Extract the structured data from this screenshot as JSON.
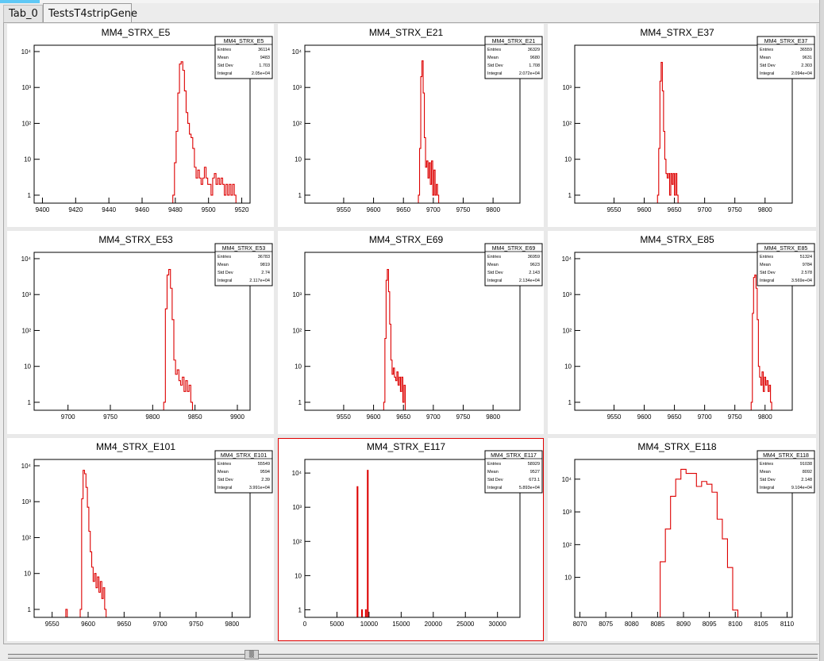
{
  "tabs": [
    {
      "label": "Tab_0"
    },
    {
      "label": "TestsT4stripGene"
    }
  ],
  "scroll_thumb_glyph": "▒",
  "colors": {
    "histogram": "#dd0000",
    "highlight_border": "#e00000",
    "pad_background": "#ffffff"
  },
  "chart_data": [
    {
      "type": "histogram",
      "title": "MM4_STRX_E5",
      "log_y": true,
      "xlim": [
        9395,
        9525
      ],
      "ylim": [
        0.6,
        15000
      ],
      "xticks": [
        9400,
        9420,
        9440,
        9460,
        9480,
        9500,
        9520
      ],
      "yticks": [
        {
          "v": 1,
          "label": "1"
        },
        {
          "v": 10,
          "label": "10"
        },
        {
          "v": 100,
          "label": "10²"
        },
        {
          "v": 1000,
          "label": "10³"
        },
        {
          "v": 10000,
          "label": "10⁴"
        }
      ],
      "bin_width": 1,
      "points": [
        [
          9479,
          1
        ],
        [
          9480,
          8
        ],
        [
          9481,
          60
        ],
        [
          9482,
          700
        ],
        [
          9483,
          4500
        ],
        [
          9484,
          5200
        ],
        [
          9485,
          3000
        ],
        [
          9486,
          800
        ],
        [
          9487,
          200
        ],
        [
          9488,
          100
        ],
        [
          9489,
          50
        ],
        [
          9490,
          40
        ],
        [
          9491,
          20
        ],
        [
          9492,
          6
        ],
        [
          9493,
          3
        ],
        [
          9494,
          5
        ],
        [
          9495,
          3
        ],
        [
          9496,
          2
        ],
        [
          9497,
          3
        ],
        [
          9498,
          6
        ],
        [
          9499,
          3
        ],
        [
          9500,
          2
        ],
        [
          9501,
          2
        ],
        [
          9502,
          1
        ],
        [
          9503,
          3
        ],
        [
          9504,
          4
        ],
        [
          9505,
          2
        ],
        [
          9506,
          3
        ],
        [
          9507,
          2
        ],
        [
          9508,
          3
        ],
        [
          9509,
          2
        ],
        [
          9510,
          1
        ],
        [
          9511,
          2
        ],
        [
          9512,
          1
        ],
        [
          9513,
          2
        ],
        [
          9514,
          1
        ],
        [
          9515,
          2
        ],
        [
          9516,
          1
        ]
      ],
      "stats": {
        "name": "MM4_STRX_E5",
        "rows": [
          [
            "Entries",
            "36114"
          ],
          [
            "Mean",
            "9483"
          ],
          [
            "Std Dev",
            "1.703"
          ],
          [
            "Integral",
            "2.05e+04"
          ]
        ]
      }
    },
    {
      "type": "histogram",
      "title": "MM4_STRX_E21",
      "log_y": true,
      "xlim": [
        9485,
        9845
      ],
      "ylim": [
        0.6,
        15000
      ],
      "xticks": [
        9550,
        9600,
        9650,
        9700,
        9750,
        9800
      ],
      "yticks": [
        {
          "v": 1,
          "label": "1"
        },
        {
          "v": 10,
          "label": "10"
        },
        {
          "v": 100,
          "label": "10²"
        },
        {
          "v": 1000,
          "label": "10³"
        },
        {
          "v": 10000,
          "label": "10⁴"
        }
      ],
      "bin_width": 2,
      "points": [
        [
          9676,
          1
        ],
        [
          9678,
          20
        ],
        [
          9680,
          2000
        ],
        [
          9682,
          5500
        ],
        [
          9684,
          700
        ],
        [
          9686,
          40
        ],
        [
          9688,
          6
        ],
        [
          9690,
          9
        ],
        [
          9692,
          3
        ],
        [
          9694,
          8
        ],
        [
          9696,
          2
        ],
        [
          9698,
          9
        ],
        [
          9700,
          1
        ],
        [
          9702,
          5
        ],
        [
          9704,
          1
        ],
        [
          9706,
          2
        ],
        [
          9708,
          1
        ]
      ],
      "stats": {
        "name": "MM4_STRX_E21",
        "rows": [
          [
            "Entries",
            "36329"
          ],
          [
            "Mean",
            "9680"
          ],
          [
            "Std Dev",
            "1.708"
          ],
          [
            "Integral",
            "2.072e+04"
          ]
        ]
      }
    },
    {
      "type": "histogram",
      "title": "MM4_STRX_E37",
      "log_y": true,
      "xlim": [
        9485,
        9845
      ],
      "ylim": [
        0.6,
        15000
      ],
      "xticks": [
        9550,
        9600,
        9650,
        9700,
        9750,
        9800
      ],
      "yticks": [
        {
          "v": 1,
          "label": "1"
        },
        {
          "v": 10,
          "label": "10"
        },
        {
          "v": 100,
          "label": "10²"
        },
        {
          "v": 1000,
          "label": "10³"
        }
      ],
      "bin_width": 2,
      "points": [
        [
          9623,
          1
        ],
        [
          9625,
          20
        ],
        [
          9627,
          1500
        ],
        [
          9629,
          5000
        ],
        [
          9631,
          800
        ],
        [
          9633,
          60
        ],
        [
          9635,
          10
        ],
        [
          9637,
          4
        ],
        [
          9639,
          3
        ],
        [
          9641,
          4
        ],
        [
          9643,
          1
        ],
        [
          9645,
          4
        ],
        [
          9647,
          2
        ],
        [
          9649,
          4
        ],
        [
          9651,
          1
        ],
        [
          9653,
          4
        ],
        [
          9655,
          1
        ]
      ],
      "stats": {
        "name": "MM4_STRX_E37",
        "rows": [
          [
            "Entries",
            "36559"
          ],
          [
            "Mean",
            "9631"
          ],
          [
            "Std Dev",
            "2.303"
          ],
          [
            "Integral",
            "2.094e+04"
          ]
        ]
      }
    },
    {
      "type": "histogram",
      "title": "MM4_STRX_E53",
      "log_y": true,
      "xlim": [
        9660,
        9915
      ],
      "ylim": [
        0.6,
        15000
      ],
      "xticks": [
        9700,
        9750,
        9800,
        9850,
        9900
      ],
      "yticks": [
        {
          "v": 1,
          "label": "1"
        },
        {
          "v": 10,
          "label": "10"
        },
        {
          "v": 100,
          "label": "10²"
        },
        {
          "v": 1000,
          "label": "10³"
        },
        {
          "v": 10000,
          "label": "10⁴"
        }
      ],
      "bin_width": 2,
      "points": [
        [
          9814,
          1
        ],
        [
          9816,
          400
        ],
        [
          9818,
          3500
        ],
        [
          9820,
          5000
        ],
        [
          9822,
          1500
        ],
        [
          9824,
          200
        ],
        [
          9826,
          15
        ],
        [
          9828,
          6
        ],
        [
          9830,
          8
        ],
        [
          9832,
          4
        ],
        [
          9834,
          3
        ],
        [
          9836,
          5
        ],
        [
          9838,
          2
        ],
        [
          9840,
          4
        ],
        [
          9842,
          2
        ],
        [
          9844,
          3
        ],
        [
          9846,
          1
        ]
      ],
      "stats": {
        "name": "MM4_STRX_E53",
        "rows": [
          [
            "Entries",
            "36783"
          ],
          [
            "Mean",
            "9819"
          ],
          [
            "Std Dev",
            "2.74"
          ],
          [
            "Integral",
            "2.117e+04"
          ]
        ]
      }
    },
    {
      "type": "histogram",
      "title": "MM4_STRX_E69",
      "log_y": true,
      "xlim": [
        9485,
        9845
      ],
      "ylim": [
        0.6,
        15000
      ],
      "xticks": [
        9550,
        9600,
        9650,
        9700,
        9750,
        9800
      ],
      "yticks": [
        {
          "v": 1,
          "label": "1"
        },
        {
          "v": 10,
          "label": "10"
        },
        {
          "v": 100,
          "label": "10²"
        },
        {
          "v": 1000,
          "label": "10³"
        }
      ],
      "bin_width": 2,
      "points": [
        [
          9618,
          1
        ],
        [
          9620,
          60
        ],
        [
          9622,
          2500
        ],
        [
          9624,
          5000
        ],
        [
          9626,
          1200
        ],
        [
          9628,
          150
        ],
        [
          9630,
          15
        ],
        [
          9632,
          6
        ],
        [
          9634,
          9
        ],
        [
          9636,
          5
        ],
        [
          9638,
          4
        ],
        [
          9640,
          7
        ],
        [
          9642,
          3
        ],
        [
          9644,
          5
        ],
        [
          9646,
          2
        ],
        [
          9648,
          5
        ],
        [
          9650,
          1
        ],
        [
          9652,
          3
        ]
      ],
      "stats": {
        "name": "MM4_STRX_E69",
        "rows": [
          [
            "Entries",
            "36959"
          ],
          [
            "Mean",
            "9623"
          ],
          [
            "Std Dev",
            "2.143"
          ],
          [
            "Integral",
            "2.134e+04"
          ]
        ]
      }
    },
    {
      "type": "histogram",
      "title": "MM4_STRX_E85",
      "log_y": true,
      "xlim": [
        9485,
        9845
      ],
      "ylim": [
        0.6,
        15000
      ],
      "xticks": [
        9550,
        9600,
        9650,
        9700,
        9750,
        9800
      ],
      "yticks": [
        {
          "v": 1,
          "label": "1"
        },
        {
          "v": 10,
          "label": "10"
        },
        {
          "v": 100,
          "label": "10²"
        },
        {
          "v": 1000,
          "label": "10³"
        },
        {
          "v": 10000,
          "label": "10⁴"
        }
      ],
      "bin_width": 2,
      "points": [
        [
          9778,
          1
        ],
        [
          9780,
          300
        ],
        [
          9782,
          3000
        ],
        [
          9784,
          3500
        ],
        [
          9786,
          1500
        ],
        [
          9788,
          200
        ],
        [
          9790,
          10
        ],
        [
          9792,
          5
        ],
        [
          9794,
          3
        ],
        [
          9796,
          7
        ],
        [
          9798,
          2
        ],
        [
          9800,
          5
        ],
        [
          9802,
          3
        ],
        [
          9804,
          4
        ],
        [
          9806,
          2
        ],
        [
          9808,
          3
        ],
        [
          9810,
          1
        ]
      ],
      "stats": {
        "name": "MM4_STRX_E85",
        "rows": [
          [
            "Entries",
            "51324"
          ],
          [
            "Mean",
            "9784"
          ],
          [
            "Std Dev",
            "2.578"
          ],
          [
            "Integral",
            "3.569e+04"
          ]
        ]
      }
    },
    {
      "type": "histogram",
      "title": "MM4_STRX_E101",
      "log_y": true,
      "xlim": [
        9525,
        9825
      ],
      "ylim": [
        0.6,
        15000
      ],
      "xticks": [
        9550,
        9600,
        9650,
        9700,
        9750,
        9800
      ],
      "yticks": [
        {
          "v": 1,
          "label": "1"
        },
        {
          "v": 10,
          "label": "10"
        },
        {
          "v": 100,
          "label": "10²"
        },
        {
          "v": 1000,
          "label": "10³"
        },
        {
          "v": 10000,
          "label": "10⁴"
        }
      ],
      "bin_width": 2,
      "points": [
        [
          9570,
          1
        ],
        [
          9572,
          0
        ],
        [
          9590,
          1
        ],
        [
          9592,
          1200
        ],
        [
          9594,
          7500
        ],
        [
          9596,
          6000
        ],
        [
          9598,
          2500
        ],
        [
          9600,
          700
        ],
        [
          9602,
          150
        ],
        [
          9604,
          40
        ],
        [
          9606,
          15
        ],
        [
          9608,
          6
        ],
        [
          9610,
          10
        ],
        [
          9612,
          4
        ],
        [
          9614,
          8
        ],
        [
          9616,
          3
        ],
        [
          9618,
          6
        ],
        [
          9620,
          2
        ],
        [
          9622,
          4
        ],
        [
          9624,
          1
        ]
      ],
      "stats": {
        "name": "MM4_STRX_E101",
        "rows": [
          [
            "Entries",
            "55549"
          ],
          [
            "Mean",
            "9594"
          ],
          [
            "Std Dev",
            "2.39"
          ],
          [
            "Integral",
            "3.991e+04"
          ]
        ]
      }
    },
    {
      "type": "histogram",
      "title": "MM4_STRX_E117",
      "log_y": true,
      "xlim": [
        0,
        33500
      ],
      "ylim": [
        0.6,
        25000
      ],
      "xticks": [
        0,
        5000,
        10000,
        15000,
        20000,
        25000,
        30000
      ],
      "yticks": [
        {
          "v": 1,
          "label": "1"
        },
        {
          "v": 10,
          "label": "10"
        },
        {
          "v": 100,
          "label": "10²"
        },
        {
          "v": 1000,
          "label": "10³"
        },
        {
          "v": 10000,
          "label": "10⁴"
        }
      ],
      "bin_width": 120,
      "points": [
        [
          8200,
          4000
        ],
        [
          8900,
          1
        ],
        [
          9500,
          1
        ],
        [
          9800,
          12000
        ]
      ],
      "stats": {
        "name": "MM4_STRX_E117",
        "rows": [
          [
            "Entries",
            "58929"
          ],
          [
            "Mean",
            "9527"
          ],
          [
            "Std Dev",
            "673.1"
          ],
          [
            "Integral",
            "5.893e+04"
          ]
        ]
      }
    },
    {
      "type": "histogram",
      "title": "MM4_STRX_E118",
      "log_y": true,
      "xlim": [
        8069,
        8111
      ],
      "ylim": [
        0.6,
        40000
      ],
      "xticks": [
        8070,
        8075,
        8080,
        8085,
        8090,
        8095,
        8100,
        8105,
        8110
      ],
      "yticks": [
        {
          "v": 10,
          "label": "10"
        },
        {
          "v": 100,
          "label": "10²"
        },
        {
          "v": 1000,
          "label": "10³"
        },
        {
          "v": 10000,
          "label": "10⁴"
        }
      ],
      "bin_width": 1,
      "points": [
        [
          8086,
          30
        ],
        [
          8087,
          300
        ],
        [
          8088,
          3000
        ],
        [
          8089,
          10000
        ],
        [
          8090,
          20000
        ],
        [
          8091,
          15000
        ],
        [
          8092,
          15000
        ],
        [
          8093,
          6000
        ],
        [
          8094,
          8500
        ],
        [
          8095,
          7000
        ],
        [
          8096,
          4000
        ],
        [
          8097,
          600
        ],
        [
          8098,
          150
        ],
        [
          8099,
          20
        ],
        [
          8100,
          1
        ]
      ],
      "stats": {
        "name": "MM4_STRX_E118",
        "rows": [
          [
            "Entries",
            "91038"
          ],
          [
            "Mean",
            "8092"
          ],
          [
            "Std Dev",
            "2.148"
          ],
          [
            "Integral",
            "9.104e+04"
          ]
        ]
      }
    }
  ]
}
